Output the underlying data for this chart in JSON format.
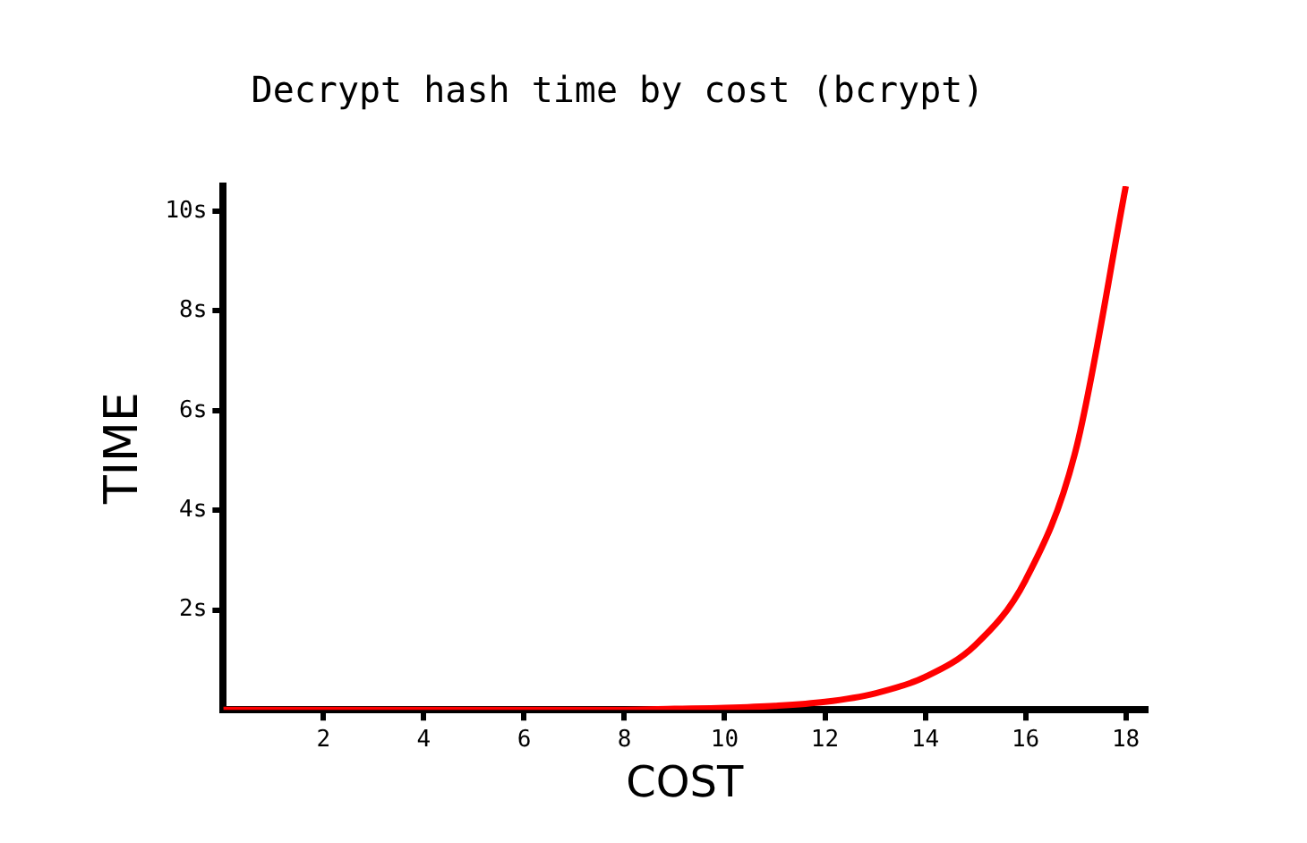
{
  "chart_data": {
    "type": "line",
    "title": "Decrypt hash time by cost (bcrypt)",
    "xlabel": "COST",
    "ylabel": "TIME",
    "x": [
      0,
      1,
      2,
      3,
      4,
      5,
      6,
      7,
      8,
      9,
      10,
      11,
      12,
      13,
      14,
      15,
      16,
      17,
      18
    ],
    "series": [
      {
        "color": "#ff0000",
        "values": [
          0,
          0,
          0,
          0,
          0,
          0,
          0,
          0,
          0,
          0.02,
          0.04,
          0.08,
          0.16,
          0.33,
          0.66,
          1.3,
          2.6,
          5.2,
          10.5
        ]
      }
    ],
    "xlim": [
      0,
      18.4
    ],
    "xticks": [
      2,
      4,
      6,
      8,
      10,
      12,
      14,
      16,
      18
    ],
    "ylim": [
      0,
      10.5
    ],
    "yticks": [
      {
        "value": 2,
        "label": "2s"
      },
      {
        "value": 4,
        "label": "4s"
      },
      {
        "value": 6,
        "label": "6s"
      },
      {
        "value": 8,
        "label": "8s"
      },
      {
        "value": 10,
        "label": "10s"
      }
    ],
    "grid": false,
    "legend": false,
    "marker": "none",
    "line_style": "solid"
  }
}
